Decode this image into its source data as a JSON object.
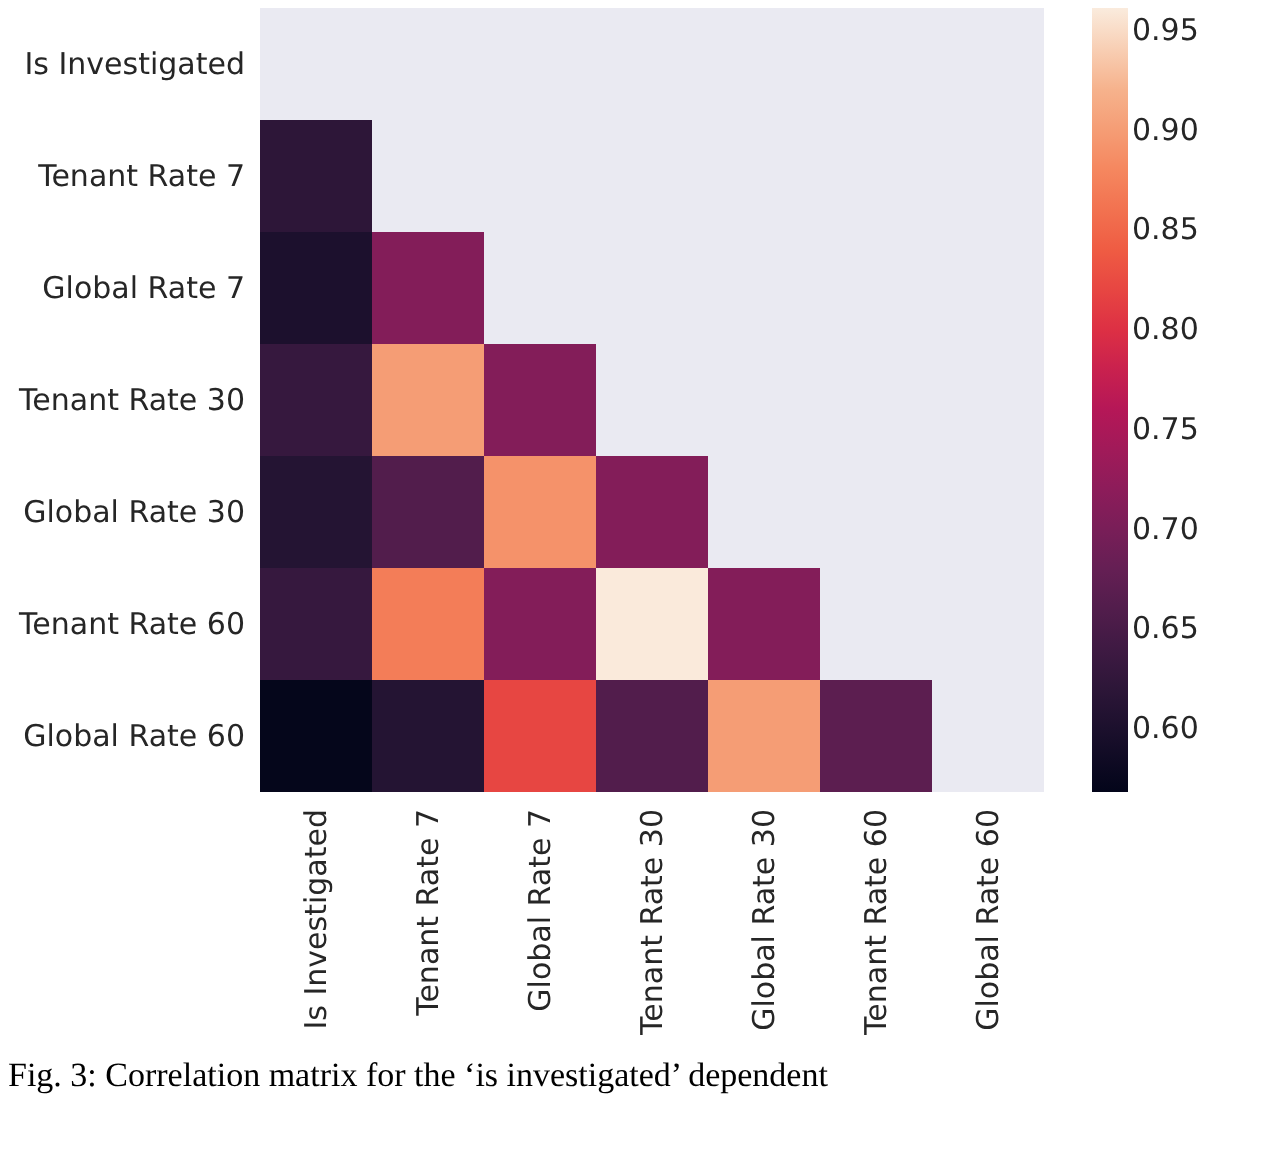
{
  "chart_data": {
    "type": "heatmap",
    "categories": [
      "Is Investigated",
      "Tenant  Rate 7",
      "Global  Rate 7",
      "Tenant  Rate 30",
      "Global  Rate 30",
      "Tenant  Rate 60",
      "Global  Rate 60"
    ],
    "y_categories": [
      "Is Investigated",
      "Tenant  Rate 7",
      "Global  Rate 7",
      "Tenant  Rate 30",
      "Global  Rate 30",
      "Tenant  Rate 60",
      "Global  Rate 60"
    ],
    "cells": [
      [
        null,
        null,
        null,
        null,
        null,
        null,
        null
      ],
      [
        0.62,
        null,
        null,
        null,
        null,
        null,
        null
      ],
      [
        0.6,
        0.71,
        null,
        null,
        null,
        null,
        null
      ],
      [
        0.63,
        0.9,
        0.71,
        null,
        null,
        null,
        null
      ],
      [
        0.61,
        0.66,
        0.89,
        0.71,
        null,
        null,
        null
      ],
      [
        0.63,
        0.87,
        0.71,
        0.96,
        0.71,
        null,
        null
      ],
      [
        0.57,
        0.61,
        0.82,
        0.66,
        0.9,
        0.67,
        null
      ]
    ],
    "clim": [
      0.568,
      0.961
    ],
    "cticks": [
      {
        "value": 0.6,
        "label": "0.60"
      },
      0.65,
      {
        "value": 0.7,
        "label": "0.70"
      },
      0.75,
      {
        "value": 0.8,
        "label": "0.80"
      },
      0.85,
      {
        "value": 0.9,
        "label": "0.90"
      },
      0.95
    ],
    "annotations": [
      "Fig. 3: Correlation matrix for the ‘is investigated’ dependent"
    ]
  }
}
